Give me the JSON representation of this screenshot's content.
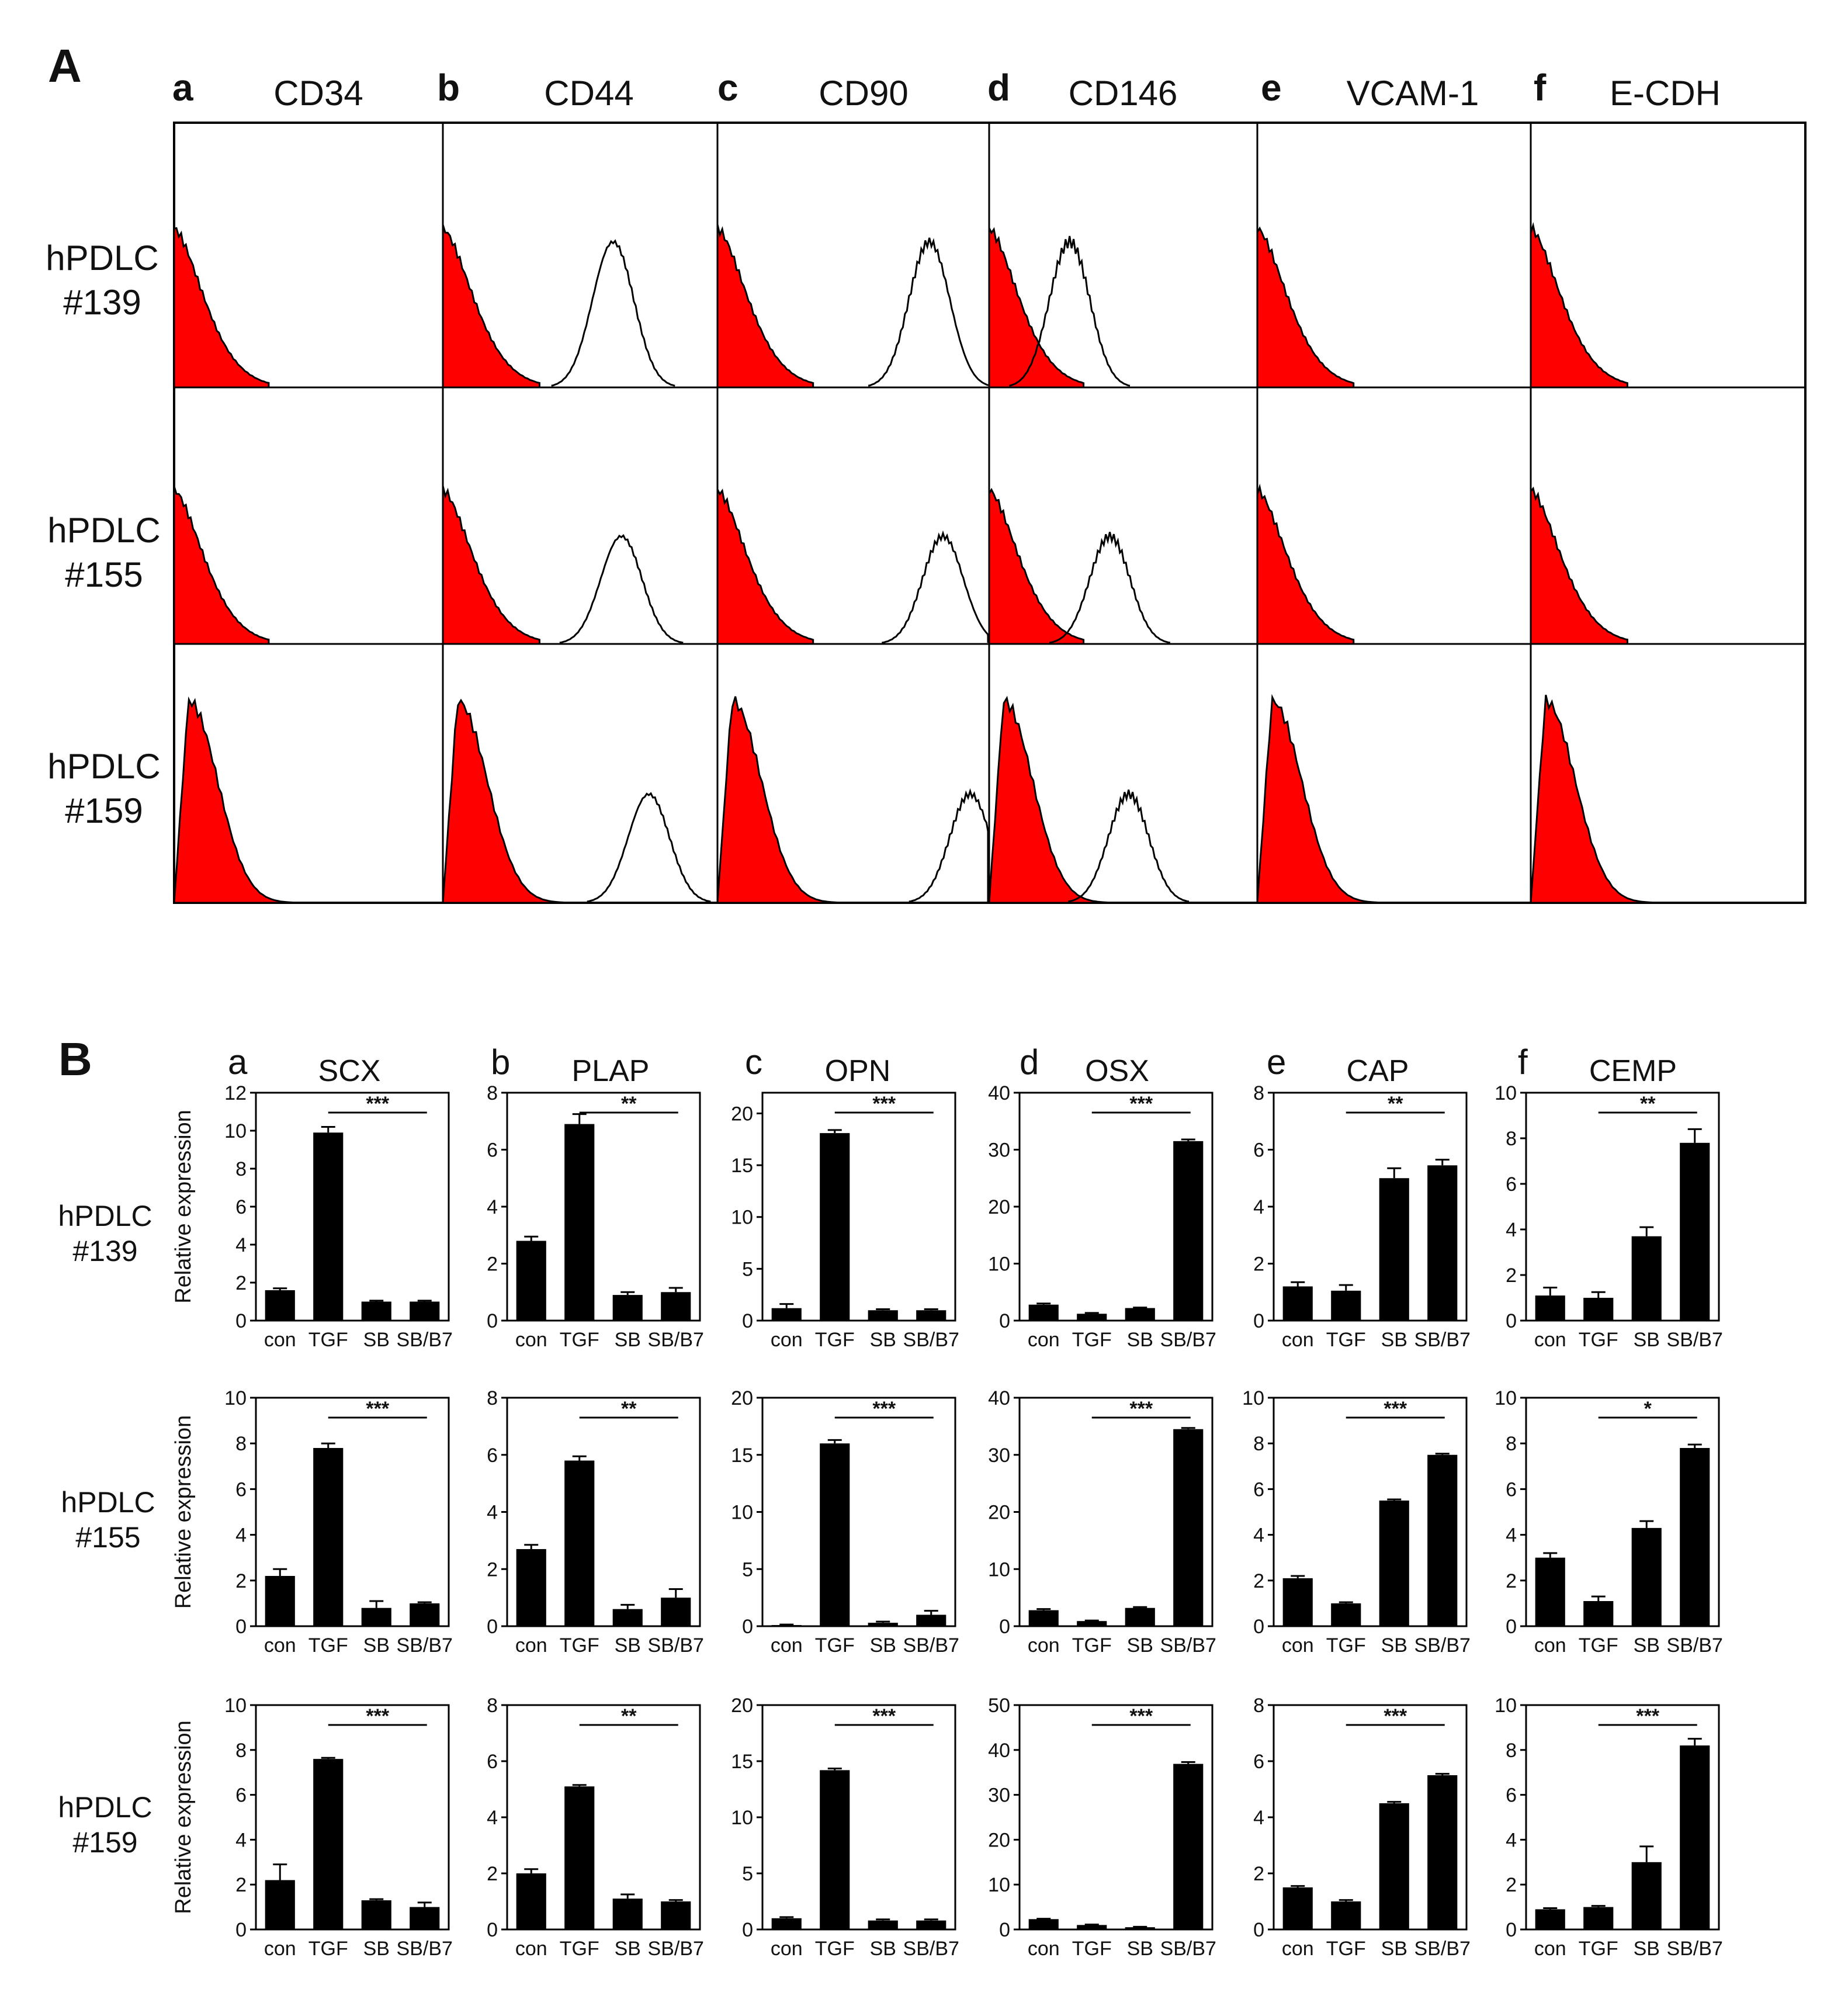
{
  "panel_A": {
    "label": "A",
    "columns": [
      {
        "letter": "a",
        "marker": "CD34"
      },
      {
        "letter": "b",
        "marker": "CD44"
      },
      {
        "letter": "c",
        "marker": "CD90"
      },
      {
        "letter": "d",
        "marker": "CD146"
      },
      {
        "letter": "e",
        "marker": "VCAM-1"
      },
      {
        "letter": "f",
        "marker": "E-CDH"
      }
    ],
    "rows": [
      {
        "name": "hPDLC",
        "id": "#139"
      },
      {
        "name": "hPDLC",
        "id": "#155"
      },
      {
        "name": "hPDLC",
        "id": "#159"
      }
    ],
    "colors": {
      "isotype_fill": "#ff0000",
      "outline": "#000000"
    }
  },
  "panel_B": {
    "label": "B",
    "ylabel": "Relative expression",
    "rows": [
      {
        "name": "hPDLC",
        "id": "#139"
      },
      {
        "name": "hPDLC",
        "id": "#155"
      },
      {
        "name": "hPDLC",
        "id": "#159"
      }
    ],
    "columns": [
      {
        "letter": "a",
        "gene": "SCX"
      },
      {
        "letter": "b",
        "gene": "PLAP"
      },
      {
        "letter": "c",
        "gene": "OPN"
      },
      {
        "letter": "d",
        "gene": "OSX"
      },
      {
        "letter": "e",
        "gene": "CAP"
      },
      {
        "letter": "f",
        "gene": "CEMP"
      }
    ]
  },
  "chart_data": [
    {
      "type": "bar",
      "title": "SCX",
      "row": "hPDLC #139",
      "categories": [
        "con",
        "TGF",
        "SB",
        "SB/B7"
      ],
      "values": [
        1.6,
        9.9,
        1.0,
        1.0
      ],
      "errors": [
        0.1,
        0.3,
        0.05,
        0.05
      ],
      "ylim": [
        0,
        12
      ],
      "yticks": [
        0,
        2,
        4,
        6,
        8,
        10,
        12
      ],
      "ylabel": "Relative expression",
      "significance": "***"
    },
    {
      "type": "bar",
      "title": "PLAP",
      "row": "hPDLC #139",
      "categories": [
        "con",
        "TGF",
        "SB",
        "SB/B7"
      ],
      "values": [
        2.8,
        6.9,
        0.9,
        1.0
      ],
      "errors": [
        0.15,
        0.35,
        0.1,
        0.15
      ],
      "ylim": [
        0,
        8
      ],
      "yticks": [
        0,
        2,
        4,
        6,
        8
      ],
      "significance": "**"
    },
    {
      "type": "bar",
      "title": "OPN",
      "row": "hPDLC #139",
      "categories": [
        "con",
        "TGF",
        "SB",
        "SB/B7"
      ],
      "values": [
        1.2,
        18.1,
        1.0,
        1.0
      ],
      "errors": [
        0.4,
        0.3,
        0.1,
        0.1
      ],
      "ylim": [
        0,
        22
      ],
      "yticks": [
        0,
        5,
        10,
        15,
        20
      ],
      "significance": "***"
    },
    {
      "type": "bar",
      "title": "OSX",
      "row": "hPDLC #139",
      "categories": [
        "con",
        "TGF",
        "SB",
        "SB/B7"
      ],
      "values": [
        2.8,
        1.2,
        2.2,
        31.5
      ],
      "errors": [
        0.2,
        0.15,
        0.1,
        0.3
      ],
      "ylim": [
        0,
        40
      ],
      "yticks": [
        0,
        10,
        20,
        30,
        40
      ],
      "significance": "***"
    },
    {
      "type": "bar",
      "title": "CAP",
      "row": "hPDLC #139",
      "categories": [
        "con",
        "TGF",
        "SB",
        "SB/B7"
      ],
      "values": [
        1.2,
        1.05,
        5.0,
        5.45
      ],
      "errors": [
        0.15,
        0.2,
        0.35,
        0.2
      ],
      "ylim": [
        0,
        8
      ],
      "yticks": [
        0,
        2,
        4,
        6,
        8
      ],
      "significance": "**"
    },
    {
      "type": "bar",
      "title": "CEMP",
      "row": "hPDLC #139",
      "categories": [
        "con",
        "TGF",
        "SB",
        "SB/B7"
      ],
      "values": [
        1.1,
        1.0,
        3.7,
        7.8
      ],
      "errors": [
        0.35,
        0.25,
        0.4,
        0.6
      ],
      "ylim": [
        0,
        10
      ],
      "yticks": [
        0,
        2,
        4,
        6,
        8,
        10
      ],
      "significance": "**"
    },
    {
      "type": "bar",
      "title": "SCX",
      "row": "hPDLC #155",
      "categories": [
        "con",
        "TGF",
        "SB",
        "SB/B7"
      ],
      "values": [
        2.2,
        7.8,
        0.8,
        1.0
      ],
      "errors": [
        0.3,
        0.2,
        0.3,
        0.05
      ],
      "ylim": [
        0,
        10
      ],
      "yticks": [
        0,
        2,
        4,
        6,
        8,
        10
      ],
      "ylabel": "Relative expression",
      "significance": "***"
    },
    {
      "type": "bar",
      "title": "PLAP",
      "row": "hPDLC #155",
      "categories": [
        "con",
        "TGF",
        "SB",
        "SB/B7"
      ],
      "values": [
        2.7,
        5.8,
        0.6,
        1.0
      ],
      "errors": [
        0.15,
        0.15,
        0.15,
        0.3
      ],
      "ylim": [
        0,
        8
      ],
      "yticks": [
        0,
        2,
        4,
        6,
        8
      ],
      "significance": "**"
    },
    {
      "type": "bar",
      "title": "OPN",
      "row": "hPDLC #155",
      "categories": [
        "con",
        "TGF",
        "SB",
        "SB/B7"
      ],
      "values": [
        0.1,
        16.0,
        0.3,
        1.0
      ],
      "errors": [
        0.05,
        0.3,
        0.1,
        0.35
      ],
      "ylim": [
        0,
        20
      ],
      "yticks": [
        0,
        5,
        10,
        15,
        20
      ],
      "significance": "***"
    },
    {
      "type": "bar",
      "title": "OSX",
      "row": "hPDLC #155",
      "categories": [
        "con",
        "TGF",
        "SB",
        "SB/B7"
      ],
      "values": [
        2.8,
        0.9,
        3.2,
        34.5
      ],
      "errors": [
        0.2,
        0.1,
        0.15,
        0.2
      ],
      "ylim": [
        0,
        40
      ],
      "yticks": [
        0,
        10,
        20,
        30,
        40
      ],
      "significance": "***"
    },
    {
      "type": "bar",
      "title": "CAP",
      "row": "hPDLC #155",
      "categories": [
        "con",
        "TGF",
        "SB",
        "SB/B7"
      ],
      "values": [
        2.1,
        1.0,
        5.5,
        7.5
      ],
      "errors": [
        0.1,
        0.05,
        0.05,
        0.05
      ],
      "ylim": [
        0,
        10
      ],
      "yticks": [
        0,
        2,
        4,
        6,
        8,
        10
      ],
      "significance": "***"
    },
    {
      "type": "bar",
      "title": "CEMP",
      "row": "hPDLC #155",
      "categories": [
        "con",
        "TGF",
        "SB",
        "SB/B7"
      ],
      "values": [
        3.0,
        1.1,
        4.3,
        7.8
      ],
      "errors": [
        0.2,
        0.2,
        0.3,
        0.15
      ],
      "ylim": [
        0,
        10
      ],
      "yticks": [
        0,
        2,
        4,
        6,
        8,
        10
      ],
      "significance": "*"
    },
    {
      "type": "bar",
      "title": "SCX",
      "row": "hPDLC #159",
      "categories": [
        "con",
        "TGF",
        "SB",
        "SB/B7"
      ],
      "values": [
        2.2,
        7.6,
        1.3,
        1.0
      ],
      "errors": [
        0.7,
        0.05,
        0.05,
        0.2
      ],
      "ylim": [
        0,
        10
      ],
      "yticks": [
        0,
        2,
        4,
        6,
        8,
        10
      ],
      "ylabel": "Relative expression",
      "significance": "***"
    },
    {
      "type": "bar",
      "title": "PLAP",
      "row": "hPDLC #159",
      "categories": [
        "con",
        "TGF",
        "SB",
        "SB/B7"
      ],
      "values": [
        2.0,
        5.1,
        1.1,
        1.0
      ],
      "errors": [
        0.15,
        0.05,
        0.15,
        0.05
      ],
      "ylim": [
        0,
        8
      ],
      "yticks": [
        0,
        2,
        4,
        6,
        8
      ],
      "significance": "**"
    },
    {
      "type": "bar",
      "title": "OPN",
      "row": "hPDLC #159",
      "categories": [
        "con",
        "TGF",
        "SB",
        "SB/B7"
      ],
      "values": [
        1.0,
        14.2,
        0.8,
        0.8
      ],
      "errors": [
        0.1,
        0.15,
        0.1,
        0.1
      ],
      "ylim": [
        0,
        20
      ],
      "yticks": [
        0,
        5,
        10,
        15,
        20
      ],
      "significance": "***"
    },
    {
      "type": "bar",
      "title": "OSX",
      "row": "hPDLC #159",
      "categories": [
        "con",
        "TGF",
        "SB",
        "SB/B7"
      ],
      "values": [
        2.3,
        1.0,
        0.5,
        36.9
      ],
      "errors": [
        0.1,
        0.1,
        0.1,
        0.4
      ],
      "ylim": [
        0,
        50
      ],
      "yticks": [
        0,
        10,
        20,
        30,
        40,
        50
      ],
      "significance": "***"
    },
    {
      "type": "bar",
      "title": "CAP",
      "row": "hPDLC #159",
      "categories": [
        "con",
        "TGF",
        "SB",
        "SB/B7"
      ],
      "values": [
        1.5,
        1.0,
        4.5,
        5.5
      ],
      "errors": [
        0.05,
        0.05,
        0.05,
        0.05
      ],
      "ylim": [
        0,
        8
      ],
      "yticks": [
        0,
        2,
        4,
        6,
        8
      ],
      "significance": "***"
    },
    {
      "type": "bar",
      "title": "CEMP",
      "row": "hPDLC #159",
      "categories": [
        "con",
        "TGF",
        "SB",
        "SB/B7"
      ],
      "values": [
        0.9,
        1.0,
        3.0,
        8.2
      ],
      "errors": [
        0.05,
        0.05,
        0.7,
        0.3
      ],
      "ylim": [
        0,
        10
      ],
      "yticks": [
        0,
        2,
        4,
        6,
        8,
        10
      ],
      "significance": "***"
    }
  ]
}
